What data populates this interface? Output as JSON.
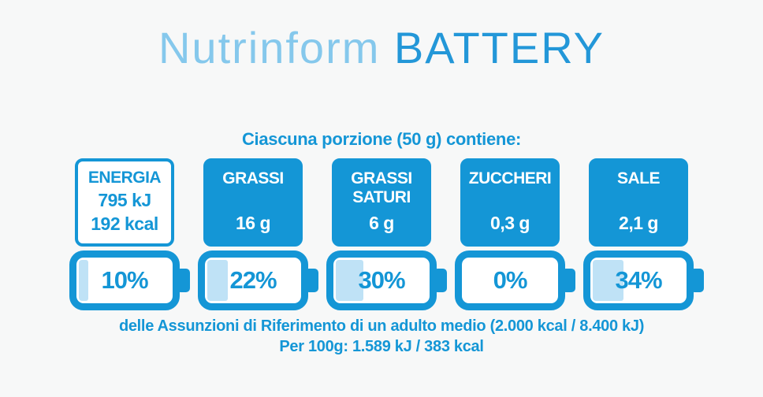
{
  "title": {
    "part1": "Nutrinform ",
    "part2": "BATTERY"
  },
  "subtitle": "Ciascuna porzione (50 g) contiene:",
  "colors": {
    "primary_blue": "#1496d6",
    "battery_fill_light_blue": "#bfe2f6",
    "title_light_blue": "#85c8ec",
    "title_dark_blue": "#2397d8",
    "background": "#f7f8f8",
    "box_text_white": "#ffffff"
  },
  "nutrients": [
    {
      "id": "energia",
      "label": "ENERGIA",
      "value_kj": "795 kJ",
      "value_kcal": "192 kcal",
      "percent": "10%",
      "percent_value": 10
    },
    {
      "id": "grassi",
      "label": "GRASSI",
      "value": "16 g",
      "percent": "22%",
      "percent_value": 22
    },
    {
      "id": "grassi-saturi",
      "label": "GRASSI SATURI",
      "value": "6 g",
      "percent": "30%",
      "percent_value": 30
    },
    {
      "id": "zuccheri",
      "label": "ZUCCHERI",
      "value": "0,3 g",
      "percent": "0%",
      "percent_value": 0
    },
    {
      "id": "sale",
      "label": "SALE",
      "value": "2,1 g",
      "percent": "34%",
      "percent_value": 34
    }
  ],
  "footer": {
    "line1": "delle Assunzioni di Riferimento di un adulto medio (2.000 kcal / 8.400 kJ)",
    "line2": "Per 100g: 1.589 kJ / 383 kcal"
  },
  "chart_data": {
    "type": "bar",
    "title": "Nutrinform BATTERY",
    "subtitle": "Ciascuna porzione (50 g) contiene:",
    "categories": [
      "ENERGIA",
      "GRASSI",
      "GRASSI SATURI",
      "ZUCCHERI",
      "SALE"
    ],
    "values": [
      10,
      22,
      30,
      0,
      34
    ],
    "value_unit": "% delle Assunzioni di Riferimento di un adulto medio",
    "amounts_per_portion": [
      "795 kJ / 192 kcal",
      "16 g",
      "6 g",
      "0,3 g",
      "2,1 g"
    ],
    "ylim": [
      0,
      100
    ],
    "legend_position": "none",
    "grid": false,
    "annotations": [
      "delle Assunzioni di Riferimento di un adulto medio (2.000 kcal / 8.400 kJ)",
      "Per 100g: 1.589 kJ / 383 kcal"
    ]
  }
}
